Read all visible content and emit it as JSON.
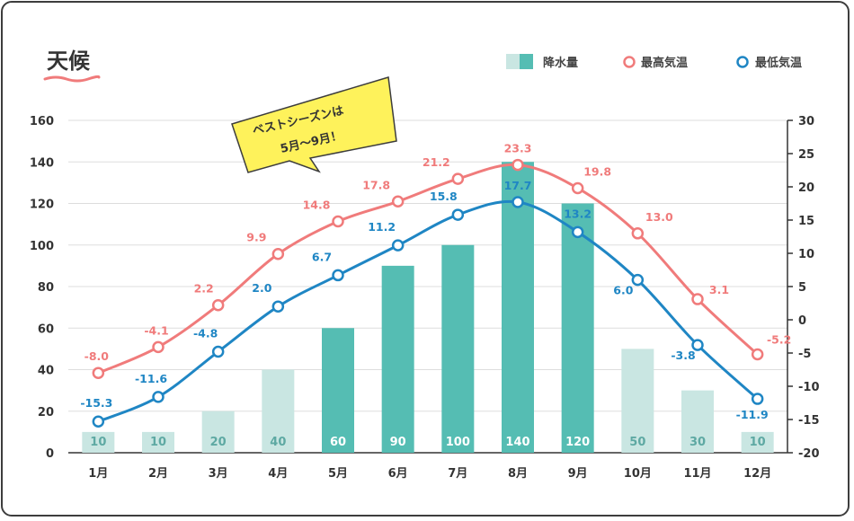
{
  "title": "天候",
  "note": {
    "line1": "ベストシーズンは",
    "line2": "5月〜9月！"
  },
  "legend": {
    "precip": "降水量",
    "high": "最高気温",
    "low": "最低気温"
  },
  "colors": {
    "bar_dark": "#55bdb3",
    "bar_light": "#c9e6e2",
    "high": "#f07b7b",
    "low": "#1f86c4",
    "note_bg": "#fef25b",
    "underline": "#f07b7b"
  },
  "chart_data": {
    "type": "bar",
    "categories": [
      "1月",
      "2月",
      "3月",
      "4月",
      "5月",
      "6月",
      "7月",
      "8月",
      "9月",
      "10月",
      "11月",
      "12月"
    ],
    "series": [
      {
        "name": "降水量",
        "type": "bar",
        "axis": "left",
        "values": [
          10,
          10,
          20,
          40,
          60,
          90,
          100,
          140,
          120,
          50,
          30,
          10
        ]
      },
      {
        "name": "最高気温",
        "type": "line",
        "axis": "right",
        "values": [
          -8.0,
          -4.1,
          2.2,
          9.9,
          14.8,
          17.8,
          21.2,
          23.3,
          19.8,
          13.0,
          3.1,
          -5.2
        ],
        "labels": [
          "-8.0",
          "-4.1",
          "2.2",
          "9.9",
          "14.8",
          "17.8",
          "21.2",
          "23.3",
          "19.8",
          "13.0",
          "3.1",
          "-5.2"
        ]
      },
      {
        "name": "最低気温",
        "type": "line",
        "axis": "right",
        "values": [
          -15.3,
          -11.6,
          -4.8,
          2.0,
          6.7,
          11.2,
          15.8,
          17.7,
          13.2,
          6.0,
          -3.8,
          -11.9
        ],
        "labels": [
          "-15.3",
          "-11.6",
          "-4.8",
          "2.0",
          "6.7",
          "11.2",
          "15.8",
          "17.7",
          "13.2",
          "6.0",
          "-3.8",
          "-11.9"
        ]
      }
    ],
    "highlight_months": [
      "5月",
      "6月",
      "7月",
      "8月",
      "9月"
    ],
    "y_left": {
      "range": [
        0,
        160
      ],
      "ticks": [
        "0",
        "20",
        "40",
        "60",
        "80",
        "100",
        "120",
        "140",
        "160"
      ]
    },
    "y_right": {
      "range": [
        -20,
        30
      ],
      "ticks": [
        "-20",
        "-15",
        "-10",
        "-5",
        "0",
        "5",
        "10",
        "15",
        "20",
        "25",
        "30"
      ]
    },
    "grid": true,
    "legend_position": "top-right"
  }
}
